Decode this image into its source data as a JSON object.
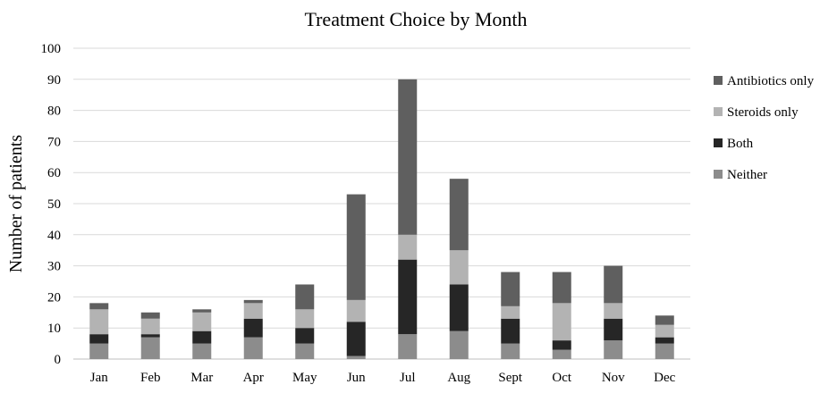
{
  "chart_data": {
    "type": "bar",
    "stacked": true,
    "title": "Treatment Choice by Month",
    "xlabel": "",
    "ylabel": "Number of patients",
    "ylim": [
      0,
      100
    ],
    "yticks": [
      "0",
      "10",
      "20",
      "30",
      "40",
      "50",
      "60",
      "70",
      "80",
      "90",
      "100"
    ],
    "grid": true,
    "legend_position": "right",
    "categories": [
      "Jan",
      "Feb",
      "Mar",
      "Apr",
      "May",
      "Jun",
      "Jul",
      "Aug",
      "Sept",
      "Oct",
      "Nov",
      "Dec"
    ],
    "series": [
      {
        "name": "Neither",
        "color": "#8c8c8c",
        "values": [
          5,
          7,
          5,
          7,
          5,
          1,
          8,
          9,
          5,
          3,
          6,
          5
        ]
      },
      {
        "name": "Both",
        "color": "#262626",
        "values": [
          3,
          1,
          4,
          6,
          5,
          11,
          24,
          15,
          8,
          3,
          7,
          2
        ]
      },
      {
        "name": "Steroids only",
        "color": "#b3b3b3",
        "values": [
          8,
          5,
          6,
          5,
          6,
          7,
          8,
          11,
          4,
          12,
          5,
          4
        ]
      },
      {
        "name": "Antibiotics only",
        "color": "#5f5f5f",
        "values": [
          2,
          2,
          1,
          1,
          8,
          34,
          50,
          23,
          11,
          10,
          12,
          3
        ]
      }
    ],
    "legend_order": [
      "Antibiotics only",
      "Steroids only",
      "Both",
      "Neither"
    ]
  }
}
